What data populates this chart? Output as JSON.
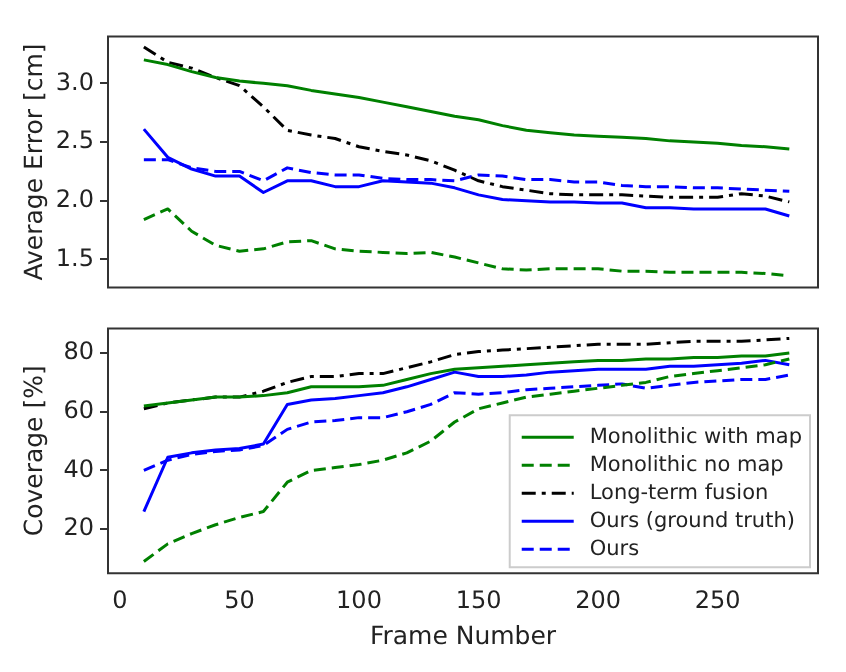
{
  "chart_data": [
    {
      "type": "line",
      "ylabel": "Average Error [cm]",
      "x": [
        10,
        20,
        30,
        40,
        50,
        60,
        70,
        80,
        90,
        100,
        110,
        120,
        130,
        140,
        150,
        160,
        170,
        180,
        190,
        200,
        210,
        220,
        230,
        240,
        250,
        260,
        270,
        280
      ],
      "xlim": [
        -5,
        292
      ],
      "xticks": [
        0,
        50,
        100,
        150,
        200,
        250
      ],
      "ylim": [
        1.26,
        3.4
      ],
      "yticks": [
        {
          "value": 1.5,
          "label": "1.5"
        },
        {
          "value": 2.0,
          "label": "2.0"
        },
        {
          "value": 2.5,
          "label": "2.5"
        },
        {
          "value": 3.0,
          "label": "3.0"
        }
      ],
      "tick_labels": "y",
      "grid": false,
      "legend": false,
      "marker": "none",
      "series": [
        {
          "color": "#008000",
          "line_style": "solid",
          "values": [
            3.2,
            3.16,
            3.1,
            3.05,
            3.02,
            3.0,
            2.98,
            2.94,
            2.91,
            2.88,
            2.84,
            2.8,
            2.76,
            2.72,
            2.69,
            2.64,
            2.6,
            2.58,
            2.56,
            2.55,
            2.54,
            2.53,
            2.51,
            2.5,
            2.49,
            2.47,
            2.46,
            2.44
          ]
        },
        {
          "color": "#008000",
          "line_style": "dashed",
          "values": [
            1.84,
            1.93,
            1.74,
            1.62,
            1.57,
            1.59,
            1.65,
            1.66,
            1.59,
            1.57,
            1.56,
            1.55,
            1.56,
            1.52,
            1.47,
            1.42,
            1.41,
            1.42,
            1.42,
            1.42,
            1.4,
            1.4,
            1.39,
            1.39,
            1.39,
            1.39,
            1.38,
            1.36
          ]
        },
        {
          "color": "#000000",
          "line_style": "dashdot",
          "values": [
            3.31,
            3.18,
            3.13,
            3.05,
            2.98,
            2.8,
            2.6,
            2.56,
            2.53,
            2.46,
            2.42,
            2.39,
            2.34,
            2.26,
            2.17,
            2.12,
            2.09,
            2.06,
            2.05,
            2.05,
            2.05,
            2.04,
            2.03,
            2.03,
            2.03,
            2.06,
            2.04,
            1.99
          ]
        },
        {
          "color": "#0000ff",
          "line_style": "solid",
          "values": [
            2.61,
            2.37,
            2.27,
            2.21,
            2.21,
            2.07,
            2.17,
            2.17,
            2.12,
            2.12,
            2.17,
            2.16,
            2.15,
            2.11,
            2.05,
            2.01,
            2.0,
            1.99,
            1.99,
            1.98,
            1.98,
            1.94,
            1.94,
            1.93,
            1.93,
            1.93,
            1.93,
            1.87
          ]
        },
        {
          "color": "#0000ff",
          "line_style": "dashed",
          "values": [
            2.35,
            2.35,
            2.28,
            2.25,
            2.25,
            2.17,
            2.28,
            2.24,
            2.22,
            2.22,
            2.19,
            2.18,
            2.18,
            2.17,
            2.22,
            2.21,
            2.18,
            2.18,
            2.16,
            2.16,
            2.13,
            2.12,
            2.12,
            2.11,
            2.11,
            2.1,
            2.09,
            2.08
          ]
        }
      ]
    },
    {
      "type": "line",
      "xlabel": "Frame Number",
      "ylabel": "Coverage [%]",
      "x": [
        10,
        20,
        30,
        40,
        50,
        60,
        70,
        80,
        90,
        100,
        110,
        120,
        130,
        140,
        150,
        160,
        170,
        180,
        190,
        200,
        210,
        220,
        230,
        240,
        250,
        260,
        270,
        280
      ],
      "xlim": [
        -5,
        292
      ],
      "xticks": [
        0,
        50,
        100,
        150,
        200,
        250
      ],
      "ylim": [
        5,
        88.4
      ],
      "yticks": [
        20,
        40,
        60,
        80
      ],
      "grid": false,
      "legend": "bottom right",
      "marker": "none",
      "series": [
        {
          "name": "Monolithic with map",
          "color": "#008000",
          "line_style": "solid",
          "values": [
            62,
            63,
            64,
            65,
            65,
            65.5,
            66.5,
            68.5,
            68.5,
            68.5,
            69,
            71,
            73,
            74.5,
            75,
            75.5,
            76,
            76.5,
            77,
            77.5,
            77.5,
            78,
            78,
            78.5,
            78.5,
            79,
            79,
            80
          ]
        },
        {
          "name": "Monolithic no map",
          "color": "#008000",
          "line_style": "dashed",
          "values": [
            9,
            15,
            18.5,
            21.5,
            24,
            26,
            36,
            40,
            41,
            42,
            43.5,
            46,
            50,
            56.5,
            61,
            63,
            65,
            66,
            67,
            68,
            69,
            70,
            72,
            73,
            74,
            75,
            76,
            78
          ]
        },
        {
          "name": "Long-term fusion",
          "color": "#000000",
          "line_style": "dashdot",
          "values": [
            61,
            63,
            64,
            65,
            65,
            67,
            70,
            72,
            72,
            73,
            73,
            75,
            77,
            79.5,
            80.5,
            81,
            81.5,
            82,
            82.5,
            83,
            83,
            83,
            83.5,
            84,
            84,
            84,
            84.5,
            85
          ]
        },
        {
          "name": "Ours (ground truth)",
          "color": "#0000ff",
          "line_style": "solid",
          "values": [
            26,
            44.5,
            46,
            47,
            47.5,
            49,
            62.5,
            64,
            64.5,
            65.5,
            66.5,
            68.5,
            71,
            73.5,
            72,
            72,
            72.5,
            73.5,
            74,
            74.5,
            74.5,
            74.5,
            75.5,
            75.5,
            76,
            76.5,
            77.5,
            76
          ]
        },
        {
          "name": "Ours",
          "color": "#0000ff",
          "line_style": "dashed",
          "values": [
            40,
            43.5,
            45.5,
            46.5,
            47,
            48.5,
            54,
            56.5,
            57,
            58,
            58,
            60,
            62.5,
            66.5,
            66,
            66.5,
            67.5,
            68,
            68.5,
            69,
            69.5,
            68,
            69,
            70,
            70.5,
            71,
            71,
            72.5
          ]
        }
      ]
    }
  ]
}
